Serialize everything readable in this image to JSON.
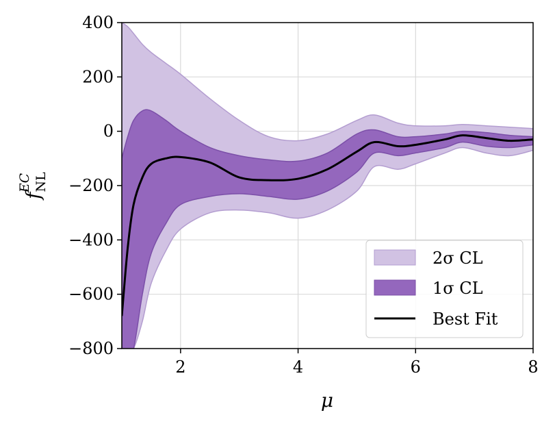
{
  "chart_data": {
    "type": "area",
    "xlabel": "μ",
    "ylabel_main": "f",
    "ylabel_sub": "NL",
    "ylabel_sup": "EC",
    "xlim": [
      1,
      8
    ],
    "ylim": [
      -800,
      400
    ],
    "xticks": [
      2,
      4,
      6,
      8
    ],
    "xtick_labels": [
      "2",
      "4",
      "6",
      "8"
    ],
    "yticks": [
      -800,
      -600,
      -400,
      -200,
      0,
      200,
      400
    ],
    "ytick_labels": [
      "−800",
      "−600",
      "−400",
      "−200",
      "0",
      "200",
      "400"
    ],
    "grid": true,
    "legend_position": "lower-right",
    "colors": {
      "two_sigma_fill": "#d1c2e3",
      "two_sigma_edge": "#b39dd0",
      "one_sigma_fill": "#9467bd",
      "one_sigma_edge": "#7b4fa8",
      "best_fit": "#000000",
      "grid": "#d9d9d9"
    },
    "x": [
      1.0,
      1.1,
      1.2,
      1.35,
      1.5,
      1.75,
      2.0,
      2.5,
      3.0,
      3.5,
      4.0,
      4.5,
      5.0,
      5.3,
      5.7,
      6.0,
      6.5,
      6.8,
      7.2,
      7.6,
      8.0
    ],
    "series": [
      {
        "name": "2σ CL",
        "upper": [
          400,
          385,
          360,
          320,
          290,
          250,
          210,
          120,
          40,
          -20,
          -35,
          -10,
          40,
          60,
          30,
          20,
          20,
          25,
          20,
          15,
          10
        ],
        "lower": [
          -800,
          -800,
          -800,
          -700,
          -560,
          -440,
          -360,
          -300,
          -290,
          -300,
          -320,
          -290,
          -220,
          -130,
          -140,
          -120,
          -80,
          -60,
          -80,
          -90,
          -70
        ]
      },
      {
        "name": "1σ CL",
        "upper": [
          -100,
          -20,
          40,
          75,
          75,
          40,
          0,
          -60,
          -90,
          -105,
          -110,
          -80,
          -10,
          5,
          -20,
          -20,
          -10,
          0,
          -5,
          -15,
          -20
        ],
        "lower": [
          -800,
          -800,
          -800,
          -600,
          -450,
          -340,
          -270,
          -240,
          -230,
          -240,
          -250,
          -220,
          -150,
          -80,
          -90,
          -80,
          -60,
          -40,
          -55,
          -60,
          -50
        ]
      },
      {
        "name": "Best Fit",
        "values": [
          -680,
          -430,
          -270,
          -170,
          -120,
          -100,
          -95,
          -115,
          -170,
          -180,
          -175,
          -140,
          -75,
          -40,
          -55,
          -50,
          -30,
          -15,
          -25,
          -35,
          -30
        ]
      }
    ],
    "legend": [
      "2σ CL",
      "1σ CL",
      "Best Fit"
    ]
  }
}
